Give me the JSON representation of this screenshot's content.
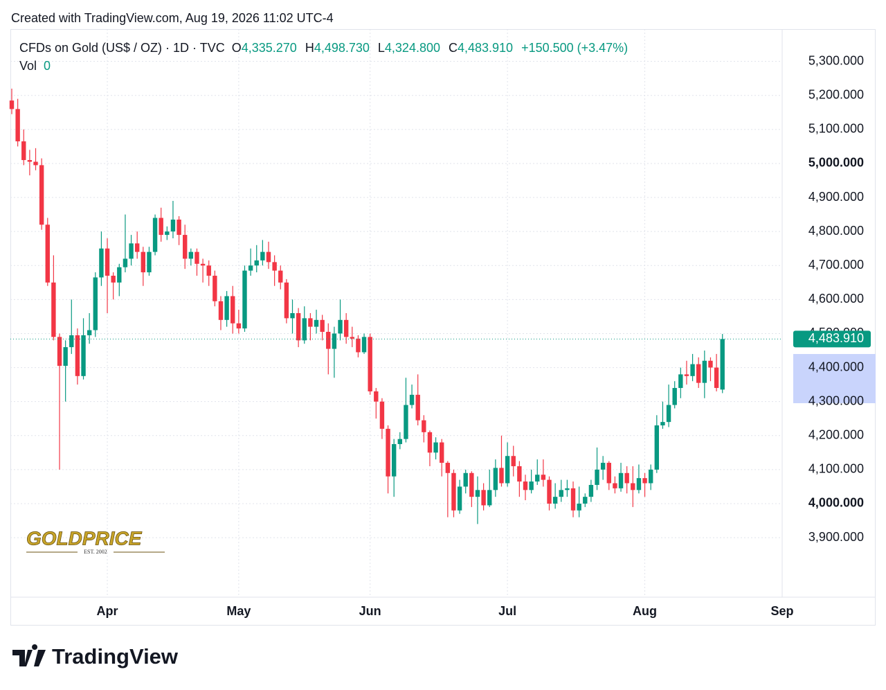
{
  "header": "Created with TradingView.com, Aug 19, 2026 11:02 UTC-4",
  "chart_data": {
    "type": "candlestick",
    "legend": {
      "symbol": "CFDs on Gold (US$ / OZ) · 1D · TVC",
      "open_key": "O",
      "open": "4,335.270",
      "high_key": "H",
      "high": "4,498.730",
      "low_key": "L",
      "low": "4,324.800",
      "close_key": "C",
      "close": "4,483.910",
      "change": "+150.500 (+3.47%)",
      "vol_key": "Vol",
      "vol": "0"
    },
    "categories": [
      null,
      null,
      null,
      null,
      null,
      null,
      null,
      null,
      null,
      null,
      null,
      null,
      null,
      null,
      null,
      null,
      "Apr",
      null,
      null,
      null,
      null,
      null,
      null,
      null,
      null,
      null,
      null,
      null,
      null,
      null,
      null,
      null,
      null,
      null,
      null,
      null,
      null,
      null,
      "May",
      null,
      null,
      null,
      null,
      null,
      null,
      null,
      null,
      null,
      null,
      null,
      null,
      null,
      null,
      null,
      null,
      null,
      null,
      null,
      null,
      null,
      "Jun",
      null,
      null,
      null,
      null,
      null,
      null,
      null,
      null,
      null,
      null,
      null,
      null,
      null,
      null,
      null,
      null,
      null,
      null,
      null,
      null,
      null,
      null,
      "Jul",
      null,
      null,
      null,
      null,
      null,
      null,
      null,
      null,
      null,
      null,
      null,
      null,
      null,
      null,
      null,
      null,
      null,
      null,
      null,
      null,
      null,
      null,
      "Aug",
      null,
      null,
      null,
      null,
      null,
      null,
      null,
      null,
      null,
      null,
      null,
      null,
      null,
      null,
      null,
      null,
      null,
      null,
      null,
      null,
      null,
      null,
      "Sep"
    ],
    "open": [
      5185,
      5160,
      5065,
      5010,
      5005,
      4995,
      4820,
      4650,
      4490,
      4405,
      4460,
      4495,
      4375,
      4495,
      4510,
      4665,
      4750,
      4670,
      4650,
      4695,
      4720,
      4765,
      4740,
      4680,
      4740,
      4840,
      4790,
      4800,
      4835,
      4790,
      4720,
      4740,
      4705,
      4700,
      4670,
      4595,
      4540,
      4610,
      4530,
      4515,
      4685,
      4700,
      4715,
      4740,
      4710,
      4685,
      4650,
      4545,
      4560,
      4480,
      4545,
      4520,
      4540,
      4505,
      4455,
      4500,
      4540,
      4490,
      4485,
      4445,
      4490,
      4330,
      4300,
      4220,
      4080,
      4175,
      4190,
      4290,
      4320,
      4245,
      4210,
      4150,
      4180,
      4120,
      4090,
      3980,
      4050,
      4090,
      4020,
      4040,
      3995,
      4040,
      4105,
      4060,
      4140,
      4110,
      4065,
      4040,
      4065,
      4085,
      4070,
      4000,
      4020,
      4040,
      4045,
      3980,
      4000,
      4020,
      4055,
      4100,
      4120,
      4060,
      4045,
      4090,
      4060,
      4040,
      4075,
      4060,
      4100,
      4230,
      4240,
      4290,
      4340,
      4380,
      4375,
      4410,
      4355,
      4420,
      4400,
      4335.27,
      null,
      null,
      null,
      null,
      null,
      null,
      null,
      null,
      null,
      null
    ],
    "high": [
      5220,
      5190,
      5100,
      5040,
      5045,
      5015,
      4840,
      4730,
      4500,
      4480,
      4600,
      4515,
      4545,
      4560,
      4680,
      4800,
      4780,
      4680,
      4705,
      4850,
      4790,
      4800,
      4755,
      4755,
      4850,
      4870,
      4815,
      4890,
      4845,
      4820,
      4750,
      4750,
      4720,
      4715,
      4685,
      4610,
      4625,
      4640,
      4570,
      4700,
      4750,
      4760,
      4775,
      4770,
      4730,
      4700,
      4660,
      4600,
      4575,
      4580,
      4560,
      4570,
      4555,
      4530,
      4520,
      4600,
      4560,
      4520,
      4495,
      4500,
      4500,
      4340,
      4310,
      4230,
      4190,
      4210,
      4370,
      4350,
      4380,
      4260,
      4215,
      4195,
      4190,
      4125,
      4100,
      4070,
      4100,
      4095,
      4080,
      4060,
      4100,
      4130,
      4200,
      4180,
      4170,
      4125,
      4085,
      4100,
      4130,
      4130,
      4080,
      4060,
      4070,
      4070,
      4065,
      4050,
      4030,
      4070,
      4165,
      4140,
      4125,
      4080,
      4120,
      4110,
      4110,
      4115,
      4090,
      4115,
      4260,
      4300,
      4350,
      4360,
      4400,
      4420,
      4440,
      4430,
      4450,
      4430,
      4440,
      4498.73,
      null,
      null,
      null,
      null,
      null,
      null,
      null,
      null,
      null,
      null
    ],
    "low": [
      5145,
      5050,
      4995,
      4965,
      4980,
      4805,
      4640,
      4480,
      4100,
      4300,
      4440,
      4350,
      4365,
      4470,
      4490,
      4640,
      4560,
      4600,
      4610,
      4680,
      4700,
      4720,
      4640,
      4670,
      4730,
      4770,
      4775,
      4780,
      4760,
      4690,
      4700,
      4670,
      4650,
      4640,
      4580,
      4510,
      4520,
      4500,
      4500,
      4505,
      4670,
      4680,
      4700,
      4690,
      4640,
      4630,
      4530,
      4500,
      4460,
      4470,
      4480,
      4500,
      4480,
      4380,
      4370,
      4480,
      4470,
      4460,
      4430,
      4440,
      4320,
      4250,
      4190,
      4030,
      4020,
      4160,
      4180,
      4280,
      4230,
      4180,
      4110,
      4130,
      4080,
      3960,
      3960,
      3970,
      4030,
      3990,
      3940,
      3980,
      3990,
      4020,
      4050,
      4050,
      4080,
      4020,
      4010,
      4030,
      4055,
      4050,
      3980,
      3985,
      4005,
      4020,
      3960,
      3960,
      3990,
      4005,
      4040,
      4070,
      4040,
      4030,
      4035,
      4030,
      3990,
      4030,
      4020,
      4040,
      4090,
      4220,
      4225,
      4280,
      4310,
      4350,
      4360,
      4340,
      4310,
      4360,
      4330,
      4324.8,
      null,
      null,
      null,
      null,
      null,
      null,
      null,
      null,
      null,
      null
    ],
    "close": [
      5160,
      5065,
      5010,
      5005,
      4995,
      4820,
      4650,
      4490,
      4405,
      4460,
      4495,
      4375,
      4495,
      4510,
      4665,
      4750,
      4670,
      4650,
      4695,
      4720,
      4765,
      4740,
      4680,
      4740,
      4840,
      4790,
      4800,
      4835,
      4790,
      4720,
      4740,
      4705,
      4700,
      4670,
      4595,
      4540,
      4610,
      4530,
      4515,
      4685,
      4700,
      4715,
      4740,
      4710,
      4685,
      4650,
      4545,
      4560,
      4480,
      4545,
      4520,
      4540,
      4505,
      4455,
      4500,
      4540,
      4490,
      4485,
      4445,
      4490,
      4330,
      4300,
      4220,
      4080,
      4175,
      4190,
      4290,
      4320,
      4245,
      4210,
      4150,
      4180,
      4120,
      4090,
      3980,
      4050,
      4090,
      4020,
      4040,
      3995,
      4040,
      4105,
      4060,
      4140,
      4110,
      4065,
      4040,
      4065,
      4085,
      4070,
      4000,
      4020,
      4040,
      4045,
      3980,
      4000,
      4020,
      4055,
      4100,
      4120,
      4060,
      4045,
      4090,
      4060,
      4040,
      4075,
      4060,
      4100,
      4230,
      4240,
      4290,
      4340,
      4380,
      4375,
      4410,
      4355,
      4420,
      4400,
      4340,
      4483.91,
      null,
      null,
      null,
      null,
      null,
      null,
      null,
      null,
      null,
      null
    ],
    "up_color": "#089981",
    "down_color": "#f23645",
    "ylim": [
      3725,
      5395
    ],
    "yticks": [
      {
        "value": 3900,
        "label": "3,900.000"
      },
      {
        "value": 4000,
        "label": "4,000.000"
      },
      {
        "value": 4100,
        "label": "4,100.000"
      },
      {
        "value": 4200,
        "label": "4,200.000"
      },
      {
        "value": 4300,
        "label": "4,300.000"
      },
      {
        "value": 4400,
        "label": "4,400.000"
      },
      {
        "value": 4500,
        "label": "4,500.000"
      },
      {
        "value": 4600,
        "label": "4,600.000"
      },
      {
        "value": 4700,
        "label": "4,700.000"
      },
      {
        "value": 4800,
        "label": "4,800.000"
      },
      {
        "value": 4900,
        "label": "4,900.000"
      },
      {
        "value": 5000,
        "label": "5,000.000"
      },
      {
        "value": 5100,
        "label": "5,100.000"
      },
      {
        "value": 5200,
        "label": "5,200.000"
      },
      {
        "value": 5300,
        "label": "5,300.000"
      }
    ],
    "last_price": {
      "value": 4483.91,
      "label": "4,483.910"
    },
    "grid": true
  },
  "watermark": {
    "name": "GOLDPRICE",
    "est": "EST. 2002"
  },
  "footer": "TradingView"
}
